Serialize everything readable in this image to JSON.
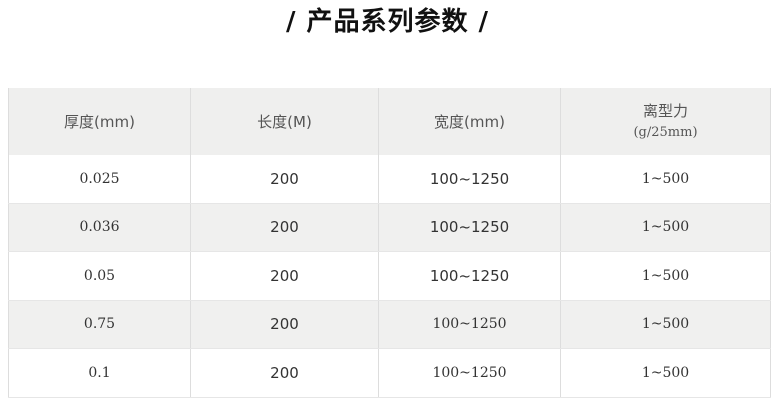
{
  "title": "/ 产品系列参数 /",
  "table": {
    "headers": [
      "厚度(mm)",
      "长度(M)",
      "宽度(mm)",
      "离型力"
    ],
    "header_sub": "(g/25mm)",
    "rows": [
      [
        "0.025",
        "200",
        "100~1250",
        "1~500"
      ],
      [
        "0.036",
        "200",
        "100~1250",
        "1~500"
      ],
      [
        "0.05",
        "200",
        "100~1250",
        "1~500"
      ],
      [
        "0.75",
        "200",
        "100~1250",
        "1~500"
      ],
      [
        "0.1",
        "200",
        "100~1250",
        "1~500"
      ]
    ]
  }
}
